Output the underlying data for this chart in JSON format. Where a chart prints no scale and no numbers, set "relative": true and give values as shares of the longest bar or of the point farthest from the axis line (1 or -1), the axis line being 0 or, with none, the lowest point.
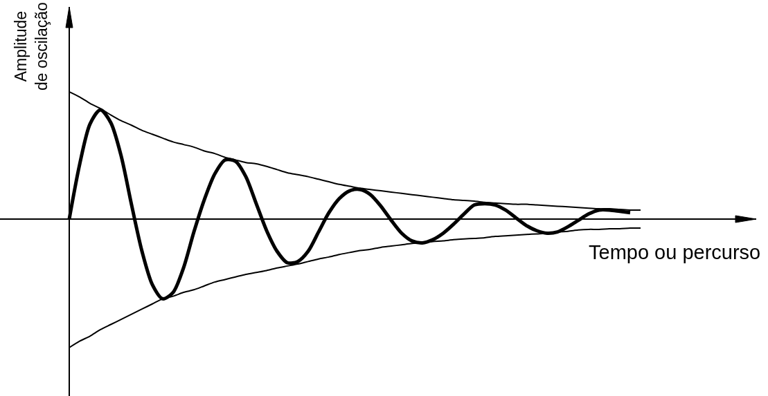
{
  "chart_data": {
    "type": "line",
    "relative": true,
    "xlabel": "Tempo ou percurso",
    "ylabel": "Amplitude\nde oscilação",
    "line_style": "solid",
    "categories": [
      null,
      null,
      null,
      null,
      null,
      null,
      null,
      null,
      null,
      null,
      null,
      null,
      null,
      null,
      null,
      null,
      null,
      null,
      null,
      null,
      null,
      null,
      null,
      null,
      null,
      null,
      null,
      null,
      null,
      null,
      null,
      null,
      null,
      null,
      null,
      null,
      null,
      null,
      null,
      null,
      null,
      null,
      null,
      null,
      null,
      null,
      null,
      null,
      null,
      null,
      null,
      null,
      null,
      null,
      null,
      null
    ],
    "series": [
      {
        "color": "#000000",
        "values": [
          0,
          0.425,
          0.74,
          0.85,
          0.75,
          0.49,
          0.11,
          -0.25,
          -0.51,
          -0.62,
          -0.57,
          -0.38,
          -0.1,
          0.15,
          0.35,
          0.46,
          0.45,
          0.33,
          0.12,
          -0.09,
          -0.25,
          -0.34,
          -0.33,
          -0.25,
          -0.1,
          0.05,
          0.16,
          0.22,
          0.23,
          0.19,
          0.1,
          -0.01,
          -0.11,
          -0.17,
          -0.185,
          -0.16,
          -0.11,
          -0.04,
          0.04,
          0.11,
          0.12,
          0.11,
          0.07,
          0.01,
          -0.05,
          -0.09,
          -0.11,
          -0.1,
          -0.06,
          -0.01,
          0.04,
          0.07,
          0.07,
          0.06,
          0.05,
          null
        ]
      },
      {
        "color": "#000000",
        "values": [
          0.99,
          0.95,
          0.9,
          0.86,
          0.81,
          0.765,
          0.73,
          0.69,
          0.66,
          0.63,
          0.6,
          0.58,
          0.56,
          0.53,
          0.51,
          0.48,
          0.46,
          0.44,
          0.43,
          0.41,
          0.385,
          0.36,
          0.345,
          0.33,
          0.31,
          0.29,
          0.27,
          0.255,
          0.24,
          0.23,
          0.22,
          0.21,
          0.2,
          0.19,
          0.18,
          0.17,
          0.16,
          0.15,
          0.145,
          0.14,
          0.13,
          0.125,
          0.12,
          0.115,
          0.115,
          0.11,
          0.105,
          0.1,
          0.095,
          0.09,
          0.085,
          0.08,
          0.08,
          0.075,
          0.07,
          0.07
        ]
      },
      {
        "color": "#000000",
        "values": [
          -1.0,
          -0.95,
          -0.91,
          -0.86,
          -0.82,
          -0.78,
          -0.74,
          -0.7,
          -0.66,
          -0.62,
          -0.6,
          -0.57,
          -0.55,
          -0.52,
          -0.49,
          -0.47,
          -0.45,
          -0.43,
          -0.415,
          -0.4,
          -0.38,
          -0.365,
          -0.35,
          -0.33,
          -0.31,
          -0.295,
          -0.275,
          -0.26,
          -0.245,
          -0.235,
          -0.22,
          -0.21,
          -0.2,
          -0.19,
          -0.185,
          -0.175,
          -0.17,
          -0.16,
          -0.155,
          -0.15,
          -0.145,
          -0.135,
          -0.13,
          -0.125,
          -0.12,
          -0.115,
          -0.11,
          -0.1,
          -0.095,
          -0.085,
          -0.08,
          -0.08,
          -0.075,
          -0.075,
          -0.07,
          -0.07
        ]
      }
    ]
  }
}
